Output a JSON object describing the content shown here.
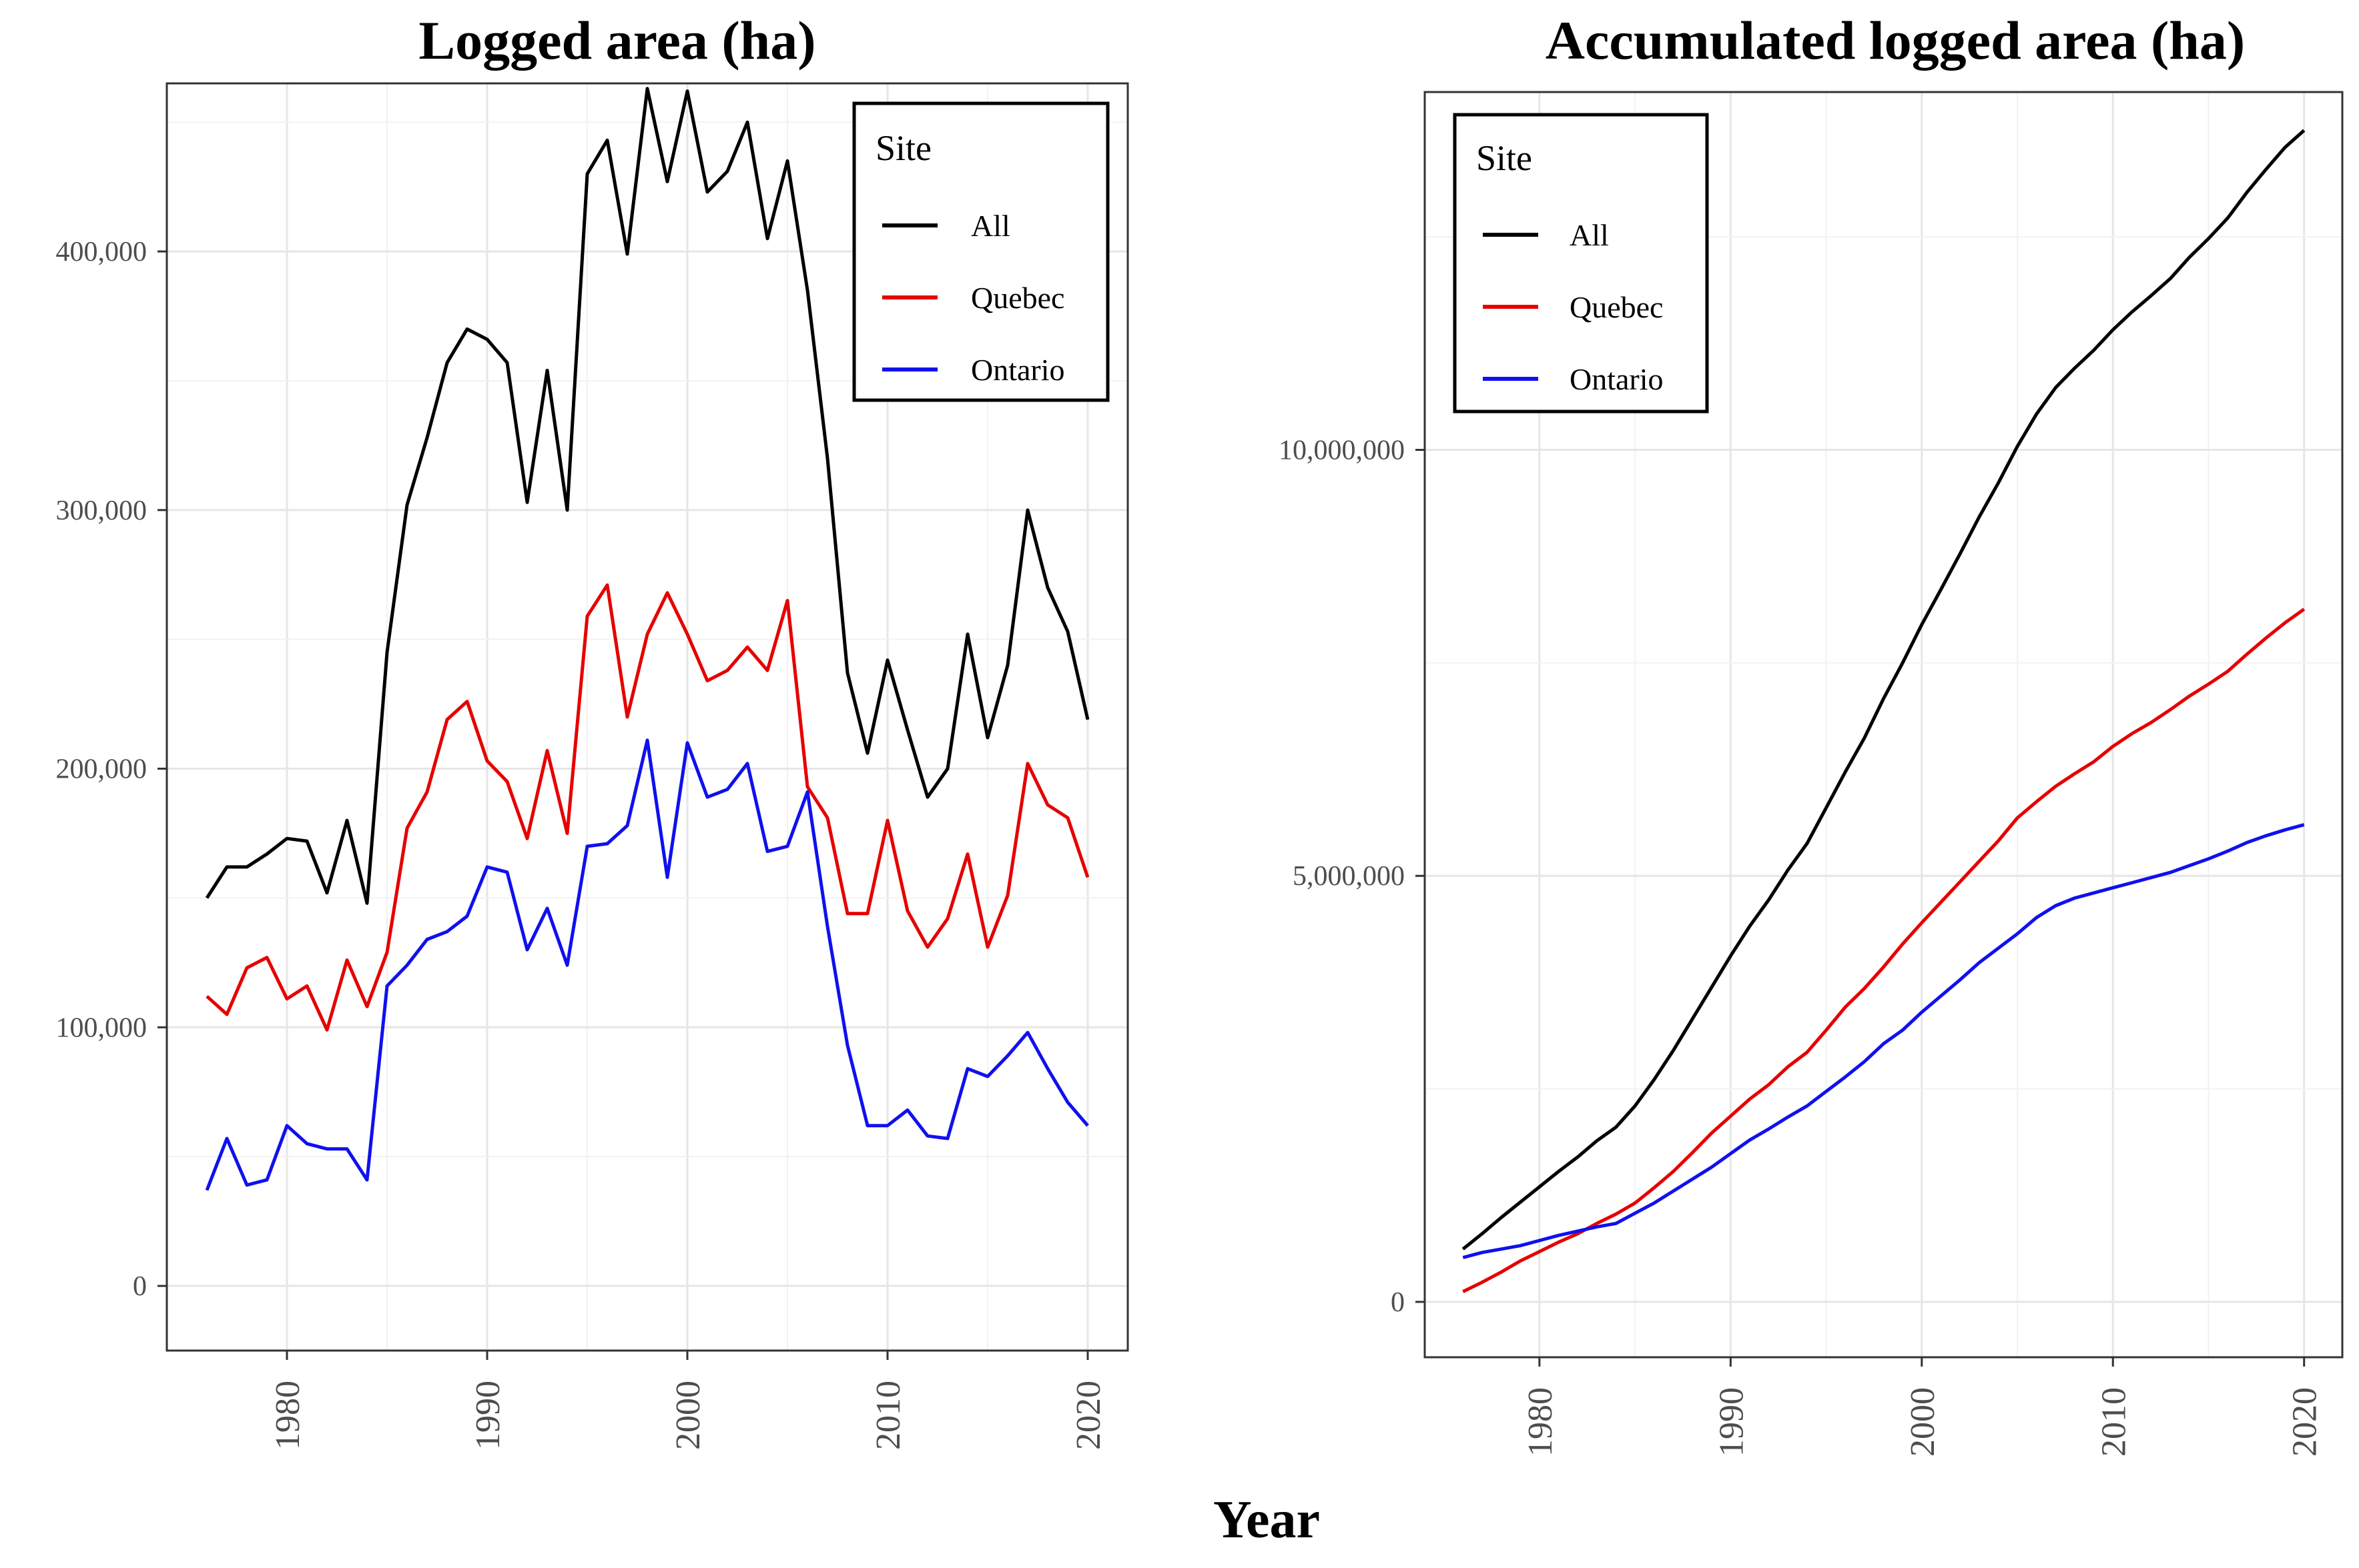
{
  "figure": {
    "shared_xlabel": "Year"
  },
  "chart_data": [
    {
      "type": "line",
      "title": "Logged area (ha)",
      "xlabel": "Year",
      "ylabel": "",
      "xlim": [
        1974,
        2022
      ],
      "ylim": [
        -25000,
        465000
      ],
      "xticks": [
        1980,
        1990,
        2000,
        2010,
        2020
      ],
      "yticks": [
        0,
        100000,
        200000,
        300000,
        400000
      ],
      "ytick_labels": [
        "0",
        "100,000",
        "200,000",
        "300,000",
        "400,000"
      ],
      "grid": true,
      "legend": {
        "title": "Site",
        "position": "top-right"
      },
      "x": [
        1976,
        1977,
        1978,
        1979,
        1980,
        1981,
        1982,
        1983,
        1984,
        1985,
        1986,
        1987,
        1988,
        1989,
        1990,
        1991,
        1992,
        1993,
        1994,
        1995,
        1996,
        1997,
        1998,
        1999,
        2000,
        2001,
        2002,
        2003,
        2004,
        2005,
        2006,
        2007,
        2008,
        2009,
        2010,
        2011,
        2012,
        2013,
        2014,
        2015,
        2016,
        2017,
        2018,
        2019,
        2020
      ],
      "series": [
        {
          "name": "All",
          "color": "#000000",
          "values": [
            150000,
            162000,
            162000,
            167000,
            173000,
            172000,
            152000,
            180000,
            148000,
            245000,
            302000,
            328000,
            357000,
            370000,
            366000,
            357000,
            303000,
            354000,
            300000,
            430000,
            443000,
            399000,
            463000,
            427000,
            462000,
            423000,
            431000,
            450000,
            405000,
            435000,
            385000,
            320000,
            237000,
            206000,
            242000,
            215000,
            189000,
            200000,
            252000,
            212000,
            240000,
            300000,
            270000,
            253000,
            219000
          ]
        },
        {
          "name": "Quebec",
          "color": "#e60000",
          "values": [
            112000,
            105000,
            123000,
            127000,
            111000,
            116000,
            99000,
            126000,
            108000,
            129000,
            177000,
            191000,
            219000,
            226000,
            203000,
            195000,
            173000,
            207000,
            175000,
            259000,
            271000,
            220000,
            252000,
            268000,
            252000,
            234000,
            238000,
            247000,
            238000,
            265000,
            193000,
            181000,
            144000,
            144000,
            180000,
            145000,
            131000,
            142000,
            167000,
            131000,
            151000,
            202000,
            186000,
            181000,
            158000
          ]
        },
        {
          "name": "Ontario",
          "color": "#1010ee",
          "values": [
            37000,
            57000,
            39000,
            41000,
            62000,
            55000,
            53000,
            53000,
            41000,
            116000,
            124000,
            134000,
            137000,
            143000,
            162000,
            160000,
            130000,
            146000,
            124000,
            170000,
            171000,
            178000,
            211000,
            158000,
            210000,
            189000,
            192000,
            202000,
            168000,
            170000,
            191000,
            139000,
            93000,
            62000,
            62000,
            68000,
            58000,
            57000,
            84000,
            81000,
            89000,
            98000,
            84000,
            71000,
            62000
          ]
        }
      ]
    },
    {
      "type": "line",
      "title": "Accumulated logged area (ha)",
      "xlabel": "Year",
      "ylabel": "",
      "xlim": [
        1974,
        2022
      ],
      "ylim": [
        -650000,
        14200000
      ],
      "xticks": [
        1980,
        1990,
        2000,
        2010,
        2020
      ],
      "yticks": [
        0,
        5000000,
        10000000
      ],
      "ytick_labels": [
        "0",
        "5,000,000",
        "10,000,000"
      ],
      "grid": true,
      "legend": {
        "title": "Site",
        "position": "top-left"
      },
      "x": [
        1976,
        1977,
        1978,
        1979,
        1980,
        1981,
        1982,
        1983,
        1984,
        1985,
        1986,
        1987,
        1988,
        1989,
        1990,
        1991,
        1992,
        1993,
        1994,
        1995,
        1996,
        1997,
        1998,
        1999,
        2000,
        2001,
        2002,
        2003,
        2004,
        2005,
        2006,
        2007,
        2008,
        2009,
        2010,
        2011,
        2012,
        2013,
        2014,
        2015,
        2016,
        2017,
        2018,
        2019,
        2020
      ],
      "series": [
        {
          "name": "All",
          "color": "#000000",
          "values": [
            620000,
            800000,
            990000,
            1170000,
            1350000,
            1530000,
            1700000,
            1890000,
            2050000,
            2300000,
            2610000,
            2950000,
            3320000,
            3690000,
            4060000,
            4410000,
            4720000,
            5070000,
            5380000,
            5800000,
            6220000,
            6620000,
            7080000,
            7500000,
            7950000,
            8360000,
            8780000,
            9210000,
            9610000,
            10040000,
            10420000,
            10730000,
            10960000,
            11170000,
            11410000,
            11620000,
            11810000,
            12010000,
            12260000,
            12480000,
            12720000,
            13020000,
            13290000,
            13550000,
            13750000
          ]
        },
        {
          "name": "Quebec",
          "color": "#e60000",
          "values": [
            120000,
            230000,
            350000,
            480000,
            590000,
            700000,
            800000,
            920000,
            1030000,
            1160000,
            1340000,
            1530000,
            1750000,
            1980000,
            2180000,
            2380000,
            2550000,
            2760000,
            2930000,
            3190000,
            3460000,
            3680000,
            3930000,
            4200000,
            4450000,
            4690000,
            4930000,
            5170000,
            5410000,
            5680000,
            5870000,
            6050000,
            6200000,
            6340000,
            6520000,
            6670000,
            6800000,
            6950000,
            7110000,
            7250000,
            7400000,
            7600000,
            7790000,
            7970000,
            8130000
          ]
        },
        {
          "name": "Ontario",
          "color": "#1010ee",
          "values": [
            520000,
            580000,
            620000,
            660000,
            720000,
            780000,
            830000,
            880000,
            920000,
            1040000,
            1160000,
            1300000,
            1440000,
            1580000,
            1740000,
            1900000,
            2030000,
            2170000,
            2300000,
            2470000,
            2640000,
            2820000,
            3030000,
            3190000,
            3400000,
            3590000,
            3780000,
            3980000,
            4150000,
            4320000,
            4510000,
            4650000,
            4740000,
            4800000,
            4860000,
            4920000,
            4980000,
            5040000,
            5120000,
            5200000,
            5290000,
            5390000,
            5470000,
            5540000,
            5600000
          ]
        }
      ]
    }
  ]
}
